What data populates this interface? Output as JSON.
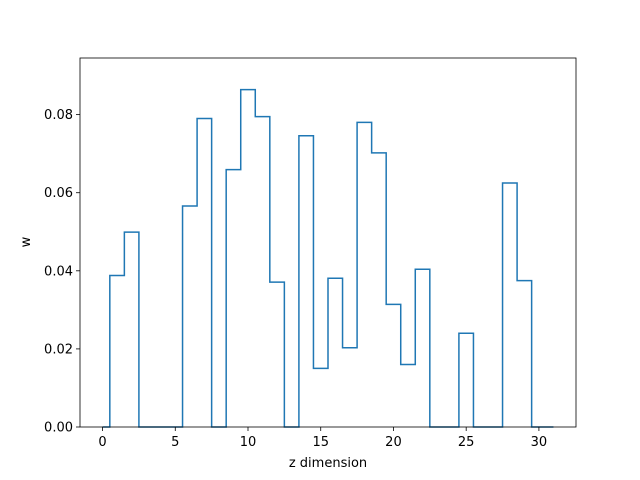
{
  "chart_data": {
    "type": "step",
    "xlabel": "z dimension",
    "ylabel": "w",
    "xlim": [
      -1.55,
      32.55
    ],
    "ylim": [
      0,
      0.0945
    ],
    "xticks": [
      0,
      5,
      10,
      15,
      20,
      25,
      30
    ],
    "xtick_labels": [
      "0",
      "5",
      "10",
      "15",
      "20",
      "25",
      "30"
    ],
    "yticks": [
      0.0,
      0.02,
      0.04,
      0.06,
      0.08
    ],
    "ytick_labels": [
      "0.00",
      "0.02",
      "0.04",
      "0.06",
      "0.08"
    ],
    "step_where": "mid",
    "x": [
      0,
      1,
      2,
      3,
      4,
      5,
      6,
      7,
      8,
      9,
      10,
      11,
      12,
      13,
      14,
      15,
      16,
      17,
      18,
      19,
      20,
      21,
      22,
      23,
      24,
      25,
      26,
      27,
      28,
      29,
      30,
      31
    ],
    "values": [
      0.0,
      0.0388,
      0.0499,
      0.0,
      0.0,
      0.0,
      0.0566,
      0.079,
      0.0,
      0.0659,
      0.0864,
      0.0795,
      0.0371,
      0.0,
      0.0746,
      0.015,
      0.0381,
      0.0203,
      0.078,
      0.0702,
      0.0314,
      0.016,
      0.0404,
      0.0,
      0.0,
      0.024,
      0.0,
      0.0,
      0.0625,
      0.0375,
      0.0,
      0.0
    ],
    "line_color": "#1f77b4",
    "grid": false
  }
}
